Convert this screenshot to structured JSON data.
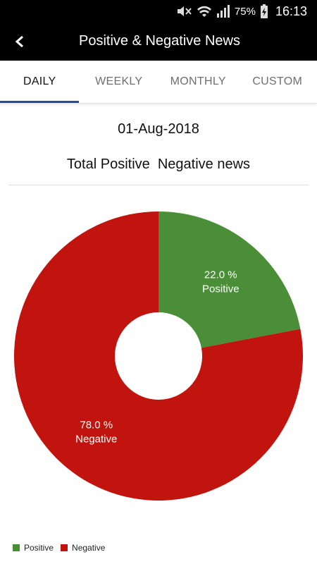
{
  "status_bar": {
    "battery": "75%",
    "time": "16:13"
  },
  "app_bar": {
    "title": "Positive & Negative News"
  },
  "tabs": [
    {
      "label": "DAILY",
      "active": true
    },
    {
      "label": "WEEKLY",
      "active": false
    },
    {
      "label": "MONTHLY",
      "active": false
    },
    {
      "label": "CUSTOM",
      "active": false
    }
  ],
  "date": "01-Aug-2018",
  "chart_title": "Total Positive  Negative news",
  "icons": {
    "back": "back-arrow-icon",
    "mute": "mute-icon",
    "wifi": "wifi-icon",
    "signal": "signal-icon",
    "battery": "battery-charging-icon"
  },
  "colors": {
    "positive": "#4a8f37",
    "negative": "#c2140e",
    "tab_indicator": "#1f4f9c"
  },
  "chart_data": {
    "type": "pie",
    "donut": true,
    "title": "Total Positive  Negative news",
    "legend_position": "bottom-left",
    "slices": [
      {
        "name": "Positive",
        "value": 22.0,
        "label": "22.0 %",
        "color": "#4a8f37"
      },
      {
        "name": "Negative",
        "value": 78.0,
        "label": "78.0 %",
        "color": "#c2140e"
      }
    ]
  }
}
